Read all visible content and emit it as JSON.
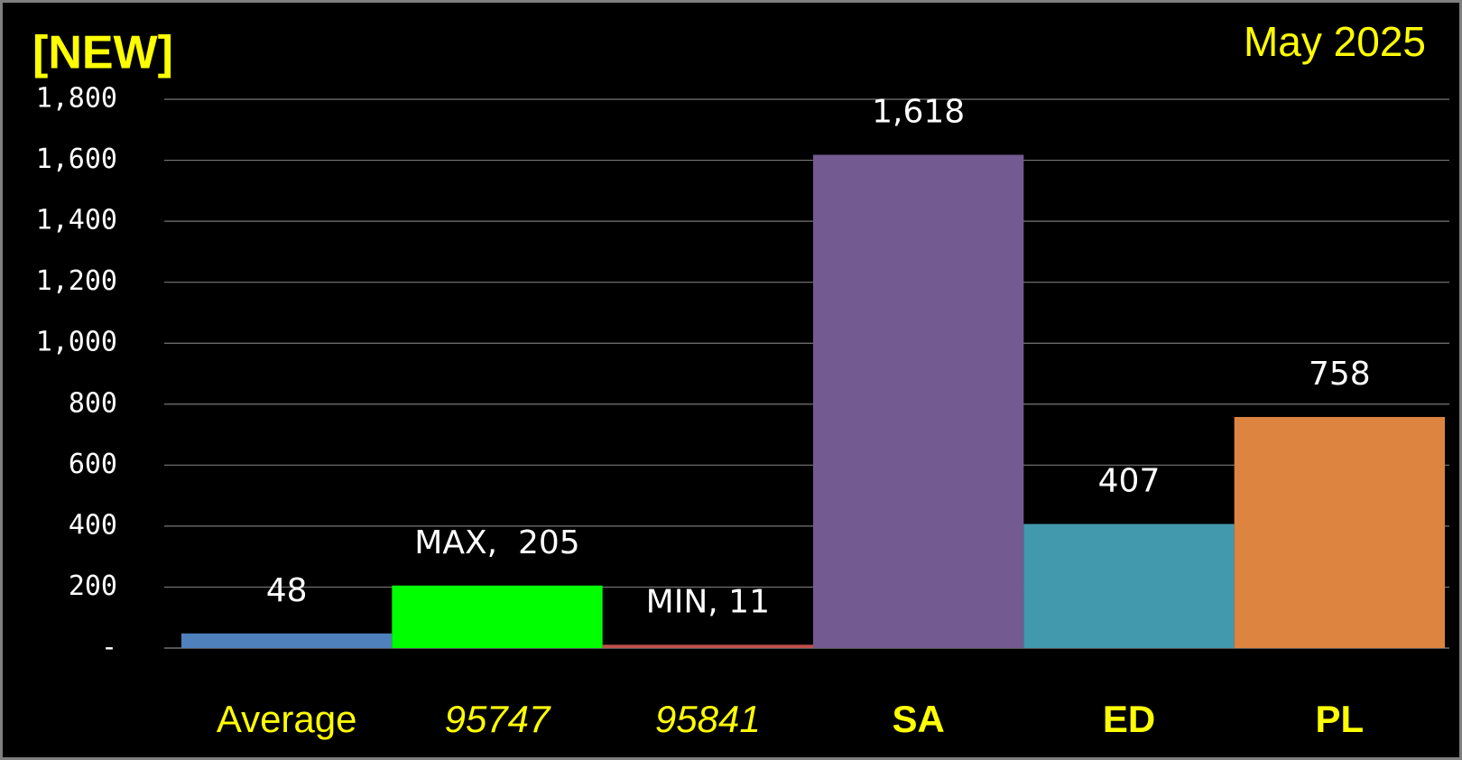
{
  "chart_data": {
    "type": "bar",
    "title": "[NEW]",
    "subtitle": "May 2025",
    "categories": [
      "Average",
      "95747",
      "95841",
      "SA",
      "ED",
      "PL"
    ],
    "category_font_styles": [
      "normal",
      "italic",
      "italic",
      "bold",
      "bold",
      "bold"
    ],
    "values": [
      48,
      205,
      11,
      1618,
      407,
      758
    ],
    "value_labels": [
      "48",
      "MAX,  205",
      "MIN, 11",
      "1,618",
      "407",
      "758"
    ],
    "colors": [
      "#4f81bd",
      "#00ff00",
      "#c0504d",
      "#735a91",
      "#4299ae",
      "#dc8440"
    ],
    "ylim": [
      0,
      1800
    ],
    "yticks": [
      {
        "value": 0,
        "label": "-"
      },
      200,
      400,
      600,
      800,
      {
        "value": 1000,
        "label": "1,000"
      },
      {
        "value": 1200,
        "label": "1,200"
      },
      {
        "value": 1400,
        "label": "1,400"
      },
      {
        "value": 1600,
        "label": "1,600"
      },
      {
        "value": 1800,
        "label": "1,800"
      }
    ],
    "grid": true
  }
}
